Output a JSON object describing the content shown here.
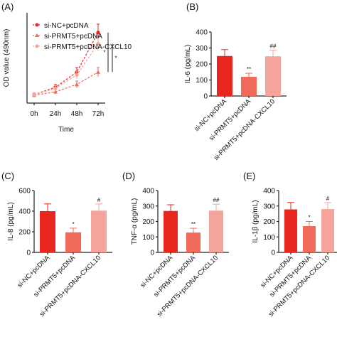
{
  "colors": {
    "nc": "#e8281e",
    "prmt5": "#f06a5a",
    "cxcl10": "#f4a49a",
    "axis": "#222222"
  },
  "chart_data": [
    {
      "panel": "(A)",
      "type": "line",
      "x": [
        "0h",
        "24h",
        "48h",
        "72h"
      ],
      "xlabel": "Time",
      "ylabel": "OD value (490nm)",
      "series": [
        {
          "name": "si-NC+pcDNA",
          "values": [
            0.15,
            0.28,
            0.55,
            1.25
          ],
          "errors": [
            0.03,
            0.05,
            0.08,
            0.15
          ]
        },
        {
          "name": "si-PRMT5+pcDNA",
          "values": [
            0.14,
            0.2,
            0.33,
            0.55
          ],
          "errors": [
            0.03,
            0.04,
            0.06,
            0.08
          ]
        },
        {
          "name": "si-PRMT5+pcDNA-CXCL10",
          "values": [
            0.15,
            0.26,
            0.5,
            1.05
          ],
          "errors": [
            0.03,
            0.05,
            0.07,
            0.12
          ]
        }
      ],
      "significance": [
        "*",
        "*"
      ]
    },
    {
      "panel": "(B)",
      "type": "bar",
      "ylabel": "IL-6 (pg/mL)",
      "ylim": [
        0,
        400
      ],
      "yticks": [
        "0",
        "100",
        "200",
        "300",
        "400"
      ],
      "categories": [
        "si-NC+pcDNA",
        "si-PRMT5+pcDNA",
        "si-PRMT5+pcDNA-CXCL10"
      ],
      "values": [
        250,
        120,
        248
      ],
      "errors": [
        40,
        22,
        38
      ],
      "significance": [
        "",
        "**",
        "##"
      ]
    },
    {
      "panel": "(C)",
      "type": "bar",
      "ylabel": "IL-8 (pg/mL)",
      "ylim": [
        0,
        600
      ],
      "yticks": [
        "0",
        "200",
        "400",
        "600"
      ],
      "categories": [
        "si-NC+pcDNA",
        "si-PRMT5+pcDNA",
        "si-PRMT5+pcDNA-CXCL10"
      ],
      "values": [
        400,
        195,
        405
      ],
      "errors": [
        70,
        40,
        65
      ],
      "significance": [
        "",
        "*",
        "#"
      ]
    },
    {
      "panel": "(D)",
      "type": "bar",
      "ylabel": "TNF-α (pg/mL)",
      "ylim": [
        0,
        400
      ],
      "yticks": [
        "0",
        "100",
        "200",
        "300",
        "400"
      ],
      "categories": [
        "si-NC+pcDNA",
        "si-PRMT5+pcDNA",
        "si-PRMT5+pcDNA-CXCL10"
      ],
      "values": [
        268,
        128,
        270
      ],
      "errors": [
        40,
        28,
        42
      ],
      "significance": [
        "",
        "**",
        "##"
      ]
    },
    {
      "panel": "(E)",
      "type": "bar",
      "ylabel": "IL-1β (pg/mL)",
      "ylim": [
        0,
        400
      ],
      "yticks": [
        "0",
        "100",
        "200",
        "300",
        "400"
      ],
      "categories": [
        "si-NC+pcDNA",
        "si-PRMT5+pcDNA",
        "si-PRMT5+pcDNA-CXCL10"
      ],
      "values": [
        278,
        170,
        280
      ],
      "errors": [
        45,
        30,
        42
      ],
      "significance": [
        "",
        "*",
        "#"
      ]
    }
  ]
}
